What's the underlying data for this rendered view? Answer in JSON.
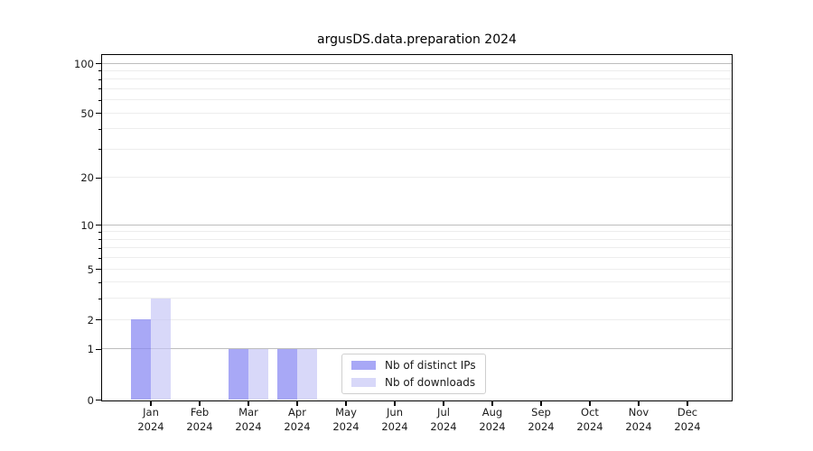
{
  "chart_data": {
    "type": "bar",
    "title": "argusDS.data.preparation 2024",
    "categories": [
      "Jan",
      "Feb",
      "Mar",
      "Apr",
      "May",
      "Jun",
      "Jul",
      "Aug",
      "Sep",
      "Oct",
      "Nov",
      "Dec"
    ],
    "x_tick_second_line": "2024",
    "series": [
      {
        "name": "Nb of distinct IPs",
        "color": "rgba(134,134,243,0.72)",
        "values": [
          2,
          0,
          1,
          1,
          0,
          0,
          0,
          0,
          0,
          0,
          0,
          0
        ]
      },
      {
        "name": "Nb of downloads",
        "color": "rgba(195,195,246,0.65)",
        "values": [
          3,
          0,
          1,
          1,
          0,
          0,
          0,
          0,
          0,
          0,
          0,
          0
        ]
      }
    ],
    "y_axis": {
      "scale": "log1p",
      "tick_labels": [
        0,
        1,
        2,
        5,
        10,
        20,
        50,
        100
      ],
      "major_gridlines": [
        1,
        10,
        100
      ],
      "minor_gridlines": [
        2,
        3,
        4,
        5,
        6,
        7,
        8,
        9,
        20,
        30,
        40,
        50,
        60,
        70,
        80,
        90
      ],
      "top_value": 100,
      "bottom_value": 0
    },
    "grid": true,
    "legend_position": "lower center"
  },
  "colors": {
    "bar_distinct_ips": "#a8a8f6",
    "bar_downloads": "#d8d8f9",
    "grid_major": "#bdbdbd",
    "grid_minor": "#ededed",
    "axis": "#000000",
    "text": "#1a1a1a",
    "legend_border": "#cfcfcf"
  }
}
